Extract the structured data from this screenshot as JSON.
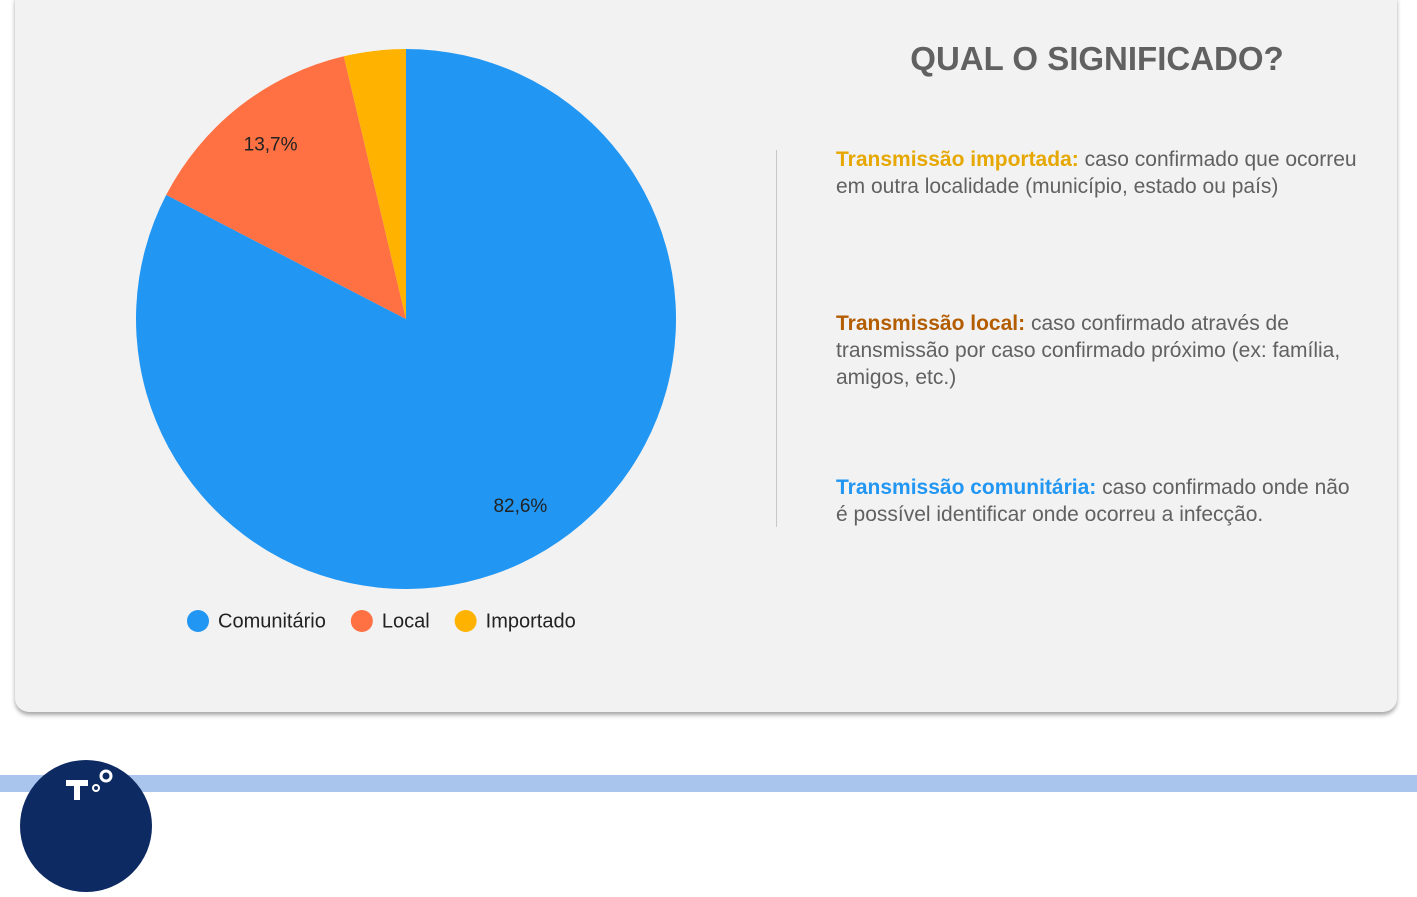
{
  "chart_data": {
    "type": "pie",
    "categories": [
      "Comunitário",
      "Local",
      "Importado"
    ],
    "values": [
      82.6,
      13.7,
      3.7
    ],
    "value_labels": [
      "82,6%",
      "13,7%",
      null
    ],
    "colors": [
      "#2196f3",
      "#ff7043",
      "#ffb300"
    ],
    "legend": "bottom"
  },
  "panel": {
    "title": "QUAL O SIGNIFICADO?",
    "definitions": [
      {
        "term": "Transmissão importada:",
        "color": "#e6a800",
        "text": "caso confirmado que ocorreu em outra localidade (município, estado ou país)"
      },
      {
        "term": "Transmissão local:",
        "color": "#b35c00",
        "text": "caso confirmado através de transmissão por caso confirmado próximo (ex: família, amigos, etc.)"
      },
      {
        "term": "Transmissão comunitária:",
        "color": "#2196f3",
        "text": "caso confirmado onde não é possível identificar onde ocorreu a infecção."
      }
    ]
  }
}
